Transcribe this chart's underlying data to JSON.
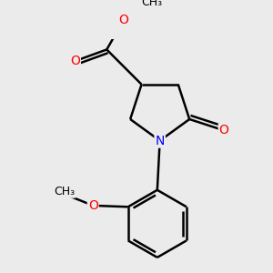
{
  "background_color": "#ebebeb",
  "bond_color": "#000000",
  "bond_width": 1.8,
  "atom_colors": {
    "O": "#ff0000",
    "N": "#0000ff",
    "C": "#000000"
  },
  "font_size_atoms": 10,
  "font_size_small": 9
}
